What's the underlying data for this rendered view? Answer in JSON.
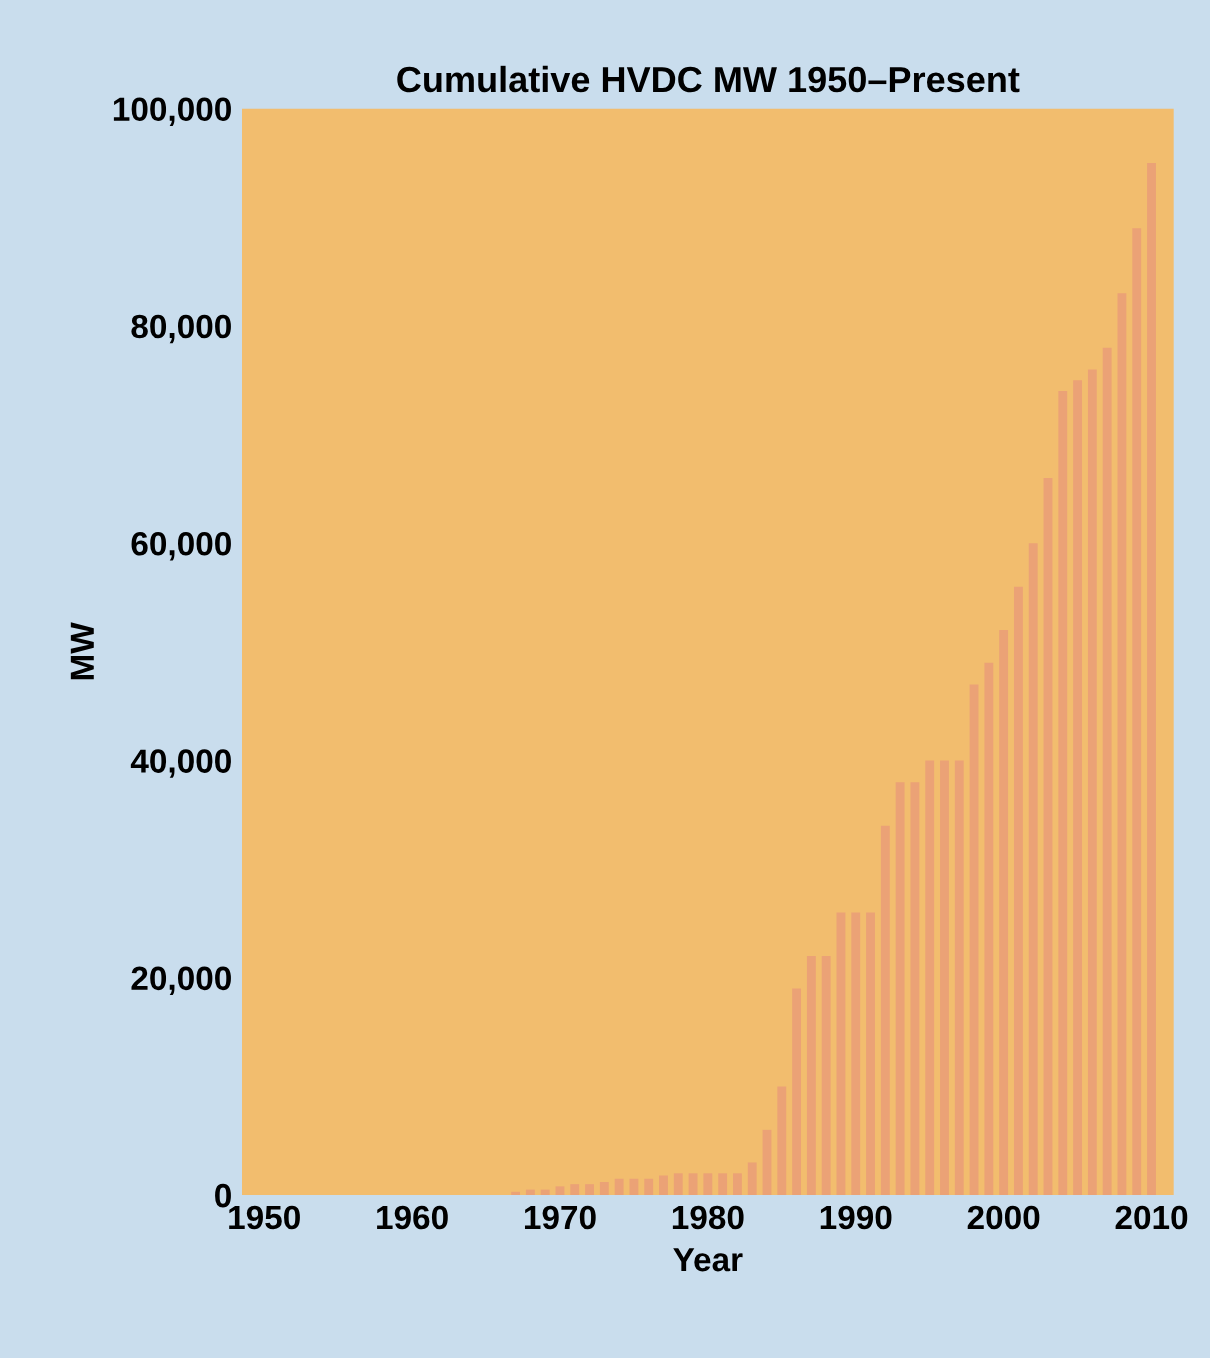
{
  "chart_data": {
    "type": "bar",
    "title": "Cumulative HVDC MW 1950–Present",
    "xlabel": "Year",
    "ylabel": "MW",
    "x": [
      1950,
      1951,
      1952,
      1953,
      1954,
      1955,
      1956,
      1957,
      1958,
      1959,
      1960,
      1961,
      1962,
      1963,
      1964,
      1965,
      1966,
      1967,
      1968,
      1969,
      1970,
      1971,
      1972,
      1973,
      1974,
      1975,
      1976,
      1977,
      1978,
      1979,
      1980,
      1981,
      1982,
      1983,
      1984,
      1985,
      1986,
      1987,
      1988,
      1989,
      1990,
      1991,
      1992,
      1993,
      1994,
      1995,
      1996,
      1997,
      1998,
      1999,
      2000,
      2001,
      2002,
      2003,
      2004,
      2005,
      2006,
      2007,
      2008,
      2009,
      2010
    ],
    "series": [
      {
        "color": "#eba276",
        "values": [
          0,
          0,
          0,
          0,
          0,
          0,
          0,
          0,
          0,
          0,
          0,
          0,
          0,
          0,
          0,
          0,
          0,
          300,
          500,
          500,
          800,
          1000,
          1000,
          1200,
          1500,
          1500,
          1500,
          1800,
          2000,
          2000,
          2000,
          2000,
          2000,
          3000,
          6000,
          10000,
          19000,
          22000,
          22000,
          26000,
          26000,
          26000,
          34000,
          38000,
          38000,
          40000,
          40000,
          40000,
          47000,
          49000,
          52000,
          56000,
          60000,
          66000,
          74000,
          75000,
          76000,
          78000,
          83000,
          89000,
          95000
        ]
      }
    ],
    "xlim": [
      1948.5,
      2011.5
    ],
    "xticks": [
      1950,
      1960,
      1970,
      1980,
      1990,
      2000,
      2010
    ],
    "ylim": [
      0,
      100000
    ],
    "yticks": [
      {
        "value": 0,
        "label": "0"
      },
      {
        "value": 20000,
        "label": "20,000"
      },
      {
        "value": 40000,
        "label": "40,000"
      },
      {
        "value": 60000,
        "label": "60,000"
      },
      {
        "value": 80000,
        "label": "80,000"
      },
      {
        "value": 100000,
        "label": "100,000"
      }
    ],
    "grid": false,
    "legend": false
  }
}
